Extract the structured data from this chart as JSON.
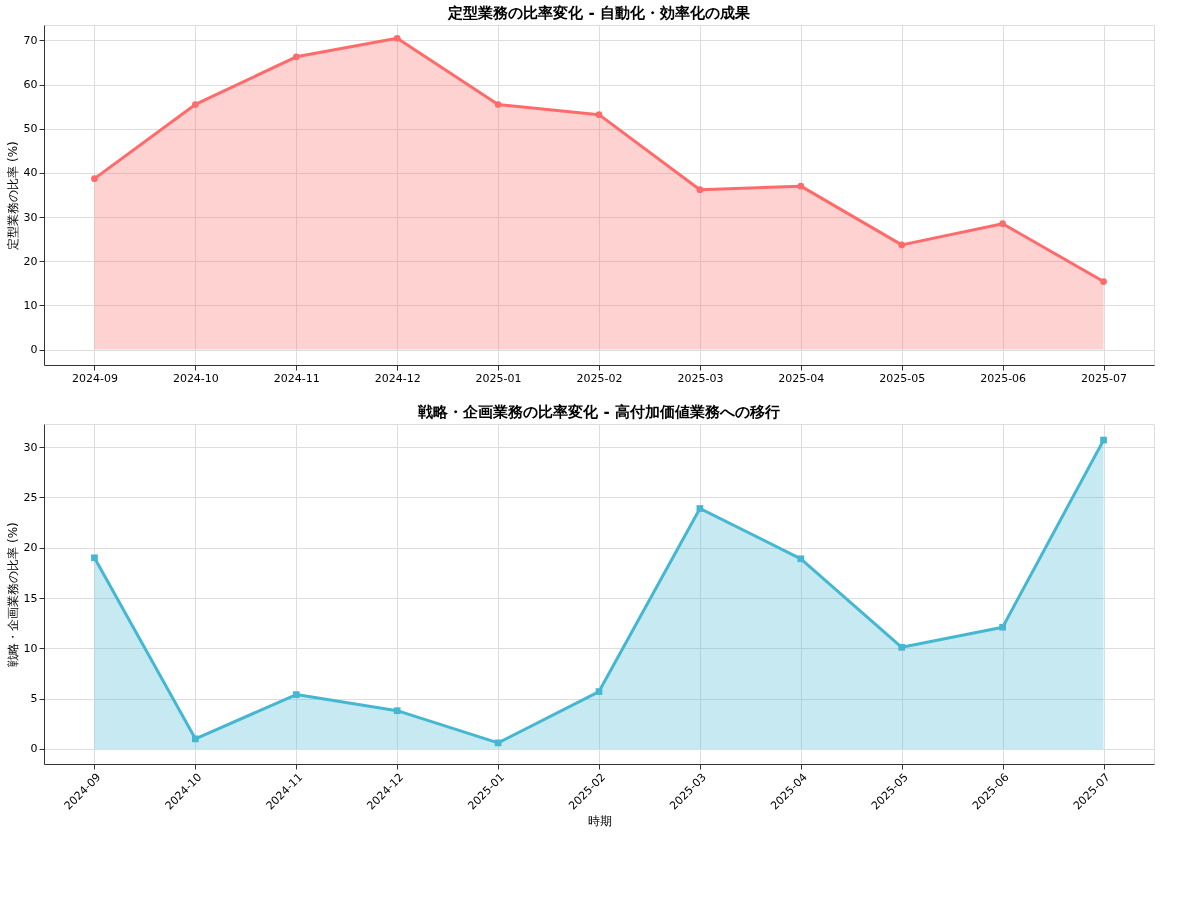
{
  "chart_data": [
    {
      "type": "area",
      "title": "定型業務の比率変化 - 自動化・効率化の成果",
      "ylabel": "定型業務の比率 (%)",
      "categories": [
        "2024-09",
        "2024-10",
        "2024-11",
        "2024-12",
        "2025-01",
        "2025-02",
        "2025-03",
        "2025-04",
        "2025-05",
        "2025-06",
        "2025-07"
      ],
      "series": [
        {
          "color": "#ff6b6b",
          "values": [
            38.7,
            55.5,
            66.3,
            70.5,
            55.5,
            53.2,
            36.2,
            37.0,
            23.7,
            28.5,
            15.4
          ]
        }
      ],
      "ylim": [
        -3.5,
        73.5
      ],
      "yticks": [
        0,
        10,
        20,
        30,
        40,
        50,
        60,
        70
      ],
      "grid": true,
      "marker": "circle",
      "line_style": "solid"
    },
    {
      "type": "area",
      "title": "戦略・企画業務の比率変化 - 高付加価値業務への移行",
      "xlabel": "時期",
      "ylabel": "戦略・企画業務の比率 (%)",
      "categories": [
        "2024-09",
        "2024-10",
        "2024-11",
        "2024-12",
        "2025-01",
        "2025-02",
        "2025-03",
        "2025-04",
        "2025-05",
        "2025-06",
        "2025-07"
      ],
      "series": [
        {
          "color": "#45b7d1",
          "values": [
            19.0,
            1.0,
            5.4,
            3.8,
            0.6,
            5.7,
            23.9,
            18.9,
            10.1,
            12.1,
            30.7
          ]
        }
      ],
      "ylim": [
        -1.5,
        32.3
      ],
      "yticks": [
        0,
        5,
        10,
        15,
        20,
        25,
        30
      ],
      "grid": true,
      "marker": "square",
      "line_style": "solid"
    }
  ]
}
